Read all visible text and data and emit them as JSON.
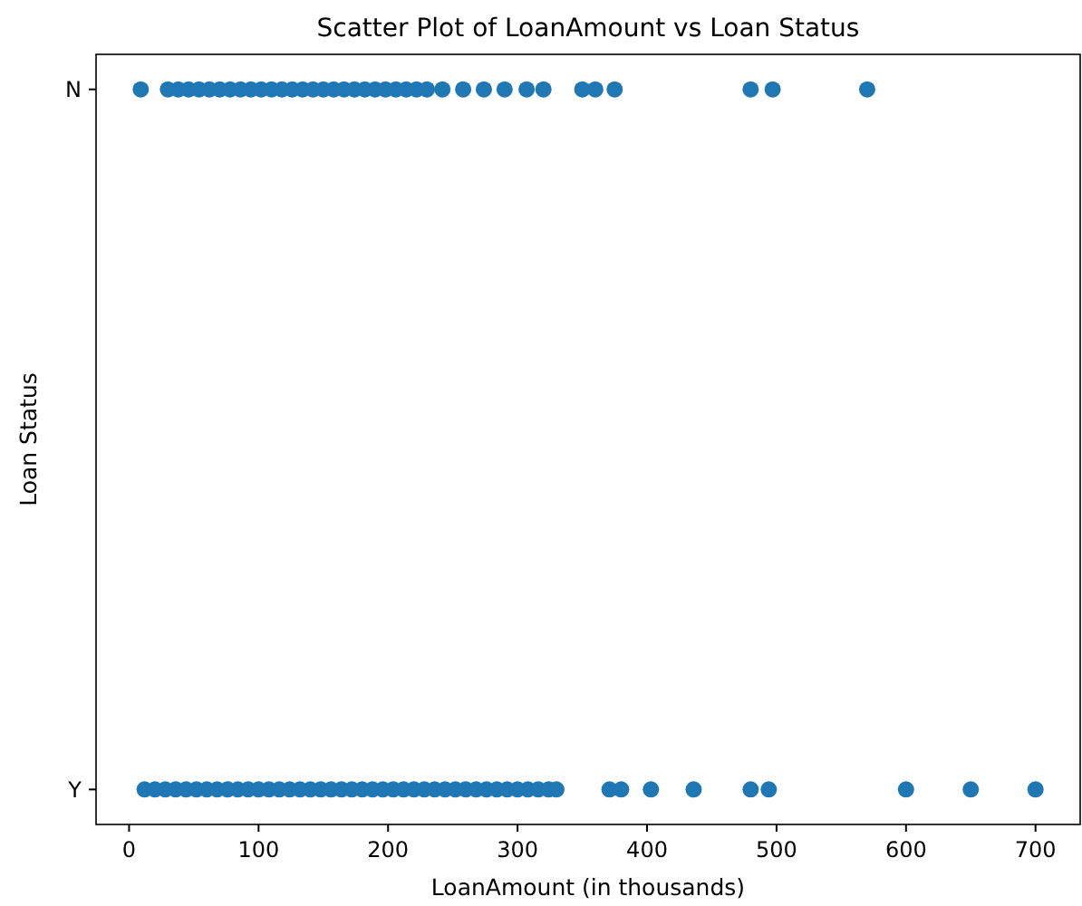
{
  "chart_data": {
    "type": "scatter",
    "title": "Scatter Plot of LoanAmount vs Loan Status",
    "xlabel": "LoanAmount (in thousands)",
    "ylabel": "Loan Status",
    "orientation": "horizontal",
    "categories": [
      "N",
      "Y"
    ],
    "xlim": [
      -25.5,
      734.5
    ],
    "xticks": [
      0,
      100,
      200,
      300,
      400,
      500,
      600,
      700
    ],
    "marker": "circle",
    "grid": false,
    "series": [
      {
        "color": "#1f77b4",
        "x": [
          "N",
          "N",
          "N",
          "N",
          "N",
          "N",
          "N",
          "N",
          "N",
          "N",
          "N",
          "N",
          "N",
          "N",
          "N",
          "N",
          "N",
          "N",
          "N",
          "N",
          "N",
          "N",
          "N",
          "N",
          "N",
          "N",
          "N",
          "N",
          "N",
          "N",
          "N",
          "N",
          "N",
          "N",
          "N",
          "N",
          "N",
          "N",
          "N"
        ],
        "values": [
          9,
          30,
          38,
          46,
          54,
          62,
          70,
          78,
          86,
          94,
          102,
          110,
          118,
          126,
          134,
          142,
          150,
          158,
          166,
          174,
          182,
          190,
          198,
          206,
          214,
          222,
          230,
          242,
          258,
          274,
          290,
          307,
          320,
          350,
          360,
          375,
          480,
          497,
          570
        ]
      },
      {
        "color": "#1f77b4",
        "x": [
          "Y",
          "Y",
          "Y",
          "Y",
          "Y",
          "Y",
          "Y",
          "Y",
          "Y",
          "Y",
          "Y",
          "Y",
          "Y",
          "Y",
          "Y",
          "Y",
          "Y",
          "Y",
          "Y",
          "Y",
          "Y",
          "Y",
          "Y",
          "Y",
          "Y",
          "Y",
          "Y",
          "Y",
          "Y",
          "Y",
          "Y",
          "Y",
          "Y",
          "Y",
          "Y",
          "Y",
          "Y",
          "Y",
          "Y",
          "Y",
          "Y",
          "Y",
          "Y",
          "Y",
          "Y",
          "Y",
          "Y",
          "Y",
          "Y",
          "Y"
        ],
        "values": [
          12,
          20,
          28,
          36,
          44,
          52,
          60,
          68,
          76,
          84,
          92,
          100,
          108,
          116,
          124,
          132,
          140,
          148,
          156,
          164,
          172,
          180,
          188,
          196,
          204,
          212,
          220,
          228,
          236,
          244,
          252,
          260,
          268,
          276,
          284,
          292,
          300,
          308,
          316,
          324,
          330,
          371,
          380,
          403,
          436,
          480,
          494,
          600,
          650,
          700
        ]
      }
    ]
  }
}
